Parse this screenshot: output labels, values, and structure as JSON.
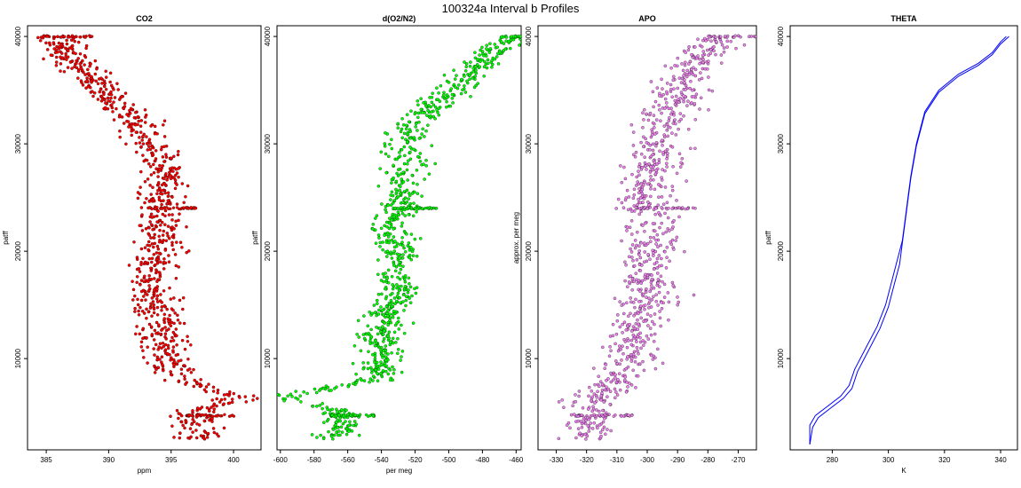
{
  "page_title": "100324a   Interval b Profiles",
  "colors": {
    "co2": "#ff0000",
    "o2n2": "#00ff00",
    "apo": "#ee82ee",
    "theta": "#0000ff",
    "outline": "#000000"
  },
  "chart_data": [
    {
      "type": "scatter",
      "title": "CO2",
      "xlabel": "ppm",
      "ylabel": "patff",
      "xlim": [
        383.5,
        402.2
      ],
      "ylim": [
        1500,
        41000
      ],
      "x_ticks": [
        385,
        390,
        395,
        400
      ],
      "y_ticks": [
        10000,
        20000,
        30000,
        40000
      ],
      "x_tick_labels": [
        "385",
        "390",
        "395",
        "400"
      ],
      "y_tick_labels": [
        "10000",
        "20000",
        "30000",
        "40000"
      ],
      "profile": [
        {
          "y": 40000,
          "x": 385.5
        },
        {
          "y": 38000,
          "x": 387.0
        },
        {
          "y": 36000,
          "x": 389.0
        },
        {
          "y": 34000,
          "x": 390.5
        },
        {
          "y": 32000,
          "x": 392.5
        },
        {
          "y": 30000,
          "x": 393.5
        },
        {
          "y": 28000,
          "x": 394.3
        },
        {
          "y": 26000,
          "x": 394.5
        },
        {
          "y": 24000,
          "x": 394.0
        },
        {
          "y": 22000,
          "x": 394.0
        },
        {
          "y": 20000,
          "x": 394.3
        },
        {
          "y": 18000,
          "x": 393.0
        },
        {
          "y": 16000,
          "x": 393.5
        },
        {
          "y": 14000,
          "x": 394.0
        },
        {
          "y": 12000,
          "x": 394.3
        },
        {
          "y": 10000,
          "x": 394.4
        },
        {
          "y": 8000,
          "x": 395.5
        },
        {
          "y": 6500,
          "x": 400.5
        },
        {
          "y": 5000,
          "x": 397.0
        },
        {
          "y": 3500,
          "x": 397.0
        },
        {
          "y": 2500,
          "x": 397.2
        }
      ],
      "spread": 1.8
    },
    {
      "type": "scatter",
      "title": "d(O2/N2)",
      "xlabel": "per meg",
      "ylabel": "patff",
      "xlim": [
        -602,
        -457
      ],
      "ylim": [
        1500,
        41000
      ],
      "x_ticks": [
        -600,
        -580,
        -560,
        -540,
        -520,
        -500,
        -480,
        -460
      ],
      "y_ticks": [
        10000,
        20000,
        30000,
        40000
      ],
      "x_tick_labels": [
        "-600",
        "-580",
        "-560",
        "-540",
        "-520",
        "-500",
        "-480",
        "-460"
      ],
      "y_tick_labels": [
        "10000",
        "20000",
        "30000",
        "40000"
      ],
      "profile": [
        {
          "y": 40000,
          "x": -462
        },
        {
          "y": 38000,
          "x": -478
        },
        {
          "y": 36000,
          "x": -490
        },
        {
          "y": 34000,
          "x": -505
        },
        {
          "y": 32000,
          "x": -520
        },
        {
          "y": 30000,
          "x": -527
        },
        {
          "y": 28000,
          "x": -525
        },
        {
          "y": 26000,
          "x": -528
        },
        {
          "y": 24000,
          "x": -528
        },
        {
          "y": 22000,
          "x": -535
        },
        {
          "y": 20000,
          "x": -532
        },
        {
          "y": 18000,
          "x": -530
        },
        {
          "y": 16000,
          "x": -528
        },
        {
          "y": 14000,
          "x": -538
        },
        {
          "y": 12000,
          "x": -540
        },
        {
          "y": 10000,
          "x": -540
        },
        {
          "y": 8000,
          "x": -545
        },
        {
          "y": 6500,
          "x": -595
        },
        {
          "y": 5000,
          "x": -565
        },
        {
          "y": 3500,
          "x": -565
        },
        {
          "y": 2500,
          "x": -568
        }
      ],
      "spread": 12
    },
    {
      "type": "scatter",
      "title": "APO",
      "xlabel": "",
      "ylabel": "approx. per meg",
      "xlim": [
        -336,
        -264
      ],
      "ylim": [
        1500,
        41000
      ],
      "x_ticks": [
        -330,
        -320,
        -310,
        -300,
        -290,
        -280,
        -270
      ],
      "y_ticks": [
        10000,
        20000,
        30000,
        40000
      ],
      "x_tick_labels": [
        "-330",
        "-320",
        "-310",
        "-300",
        "-290",
        "-280",
        "-270"
      ],
      "y_tick_labels": [
        "10000",
        "20000",
        "30000",
        "40000"
      ],
      "profile": [
        {
          "y": 40000,
          "x": -276
        },
        {
          "y": 38000,
          "x": -282
        },
        {
          "y": 36000,
          "x": -288
        },
        {
          "y": 34000,
          "x": -290
        },
        {
          "y": 32000,
          "x": -295
        },
        {
          "y": 30000,
          "x": -297
        },
        {
          "y": 28000,
          "x": -298
        },
        {
          "y": 26000,
          "x": -300
        },
        {
          "y": 24000,
          "x": -300
        },
        {
          "y": 22000,
          "x": -298
        },
        {
          "y": 20000,
          "x": -299
        },
        {
          "y": 18000,
          "x": -300
        },
        {
          "y": 16000,
          "x": -298
        },
        {
          "y": 14000,
          "x": -302
        },
        {
          "y": 12000,
          "x": -305
        },
        {
          "y": 10000,
          "x": -305
        },
        {
          "y": 8000,
          "x": -310
        },
        {
          "y": 6500,
          "x": -318
        },
        {
          "y": 5000,
          "x": -320
        },
        {
          "y": 3500,
          "x": -318
        },
        {
          "y": 2500,
          "x": -320
        }
      ],
      "spread": 9
    },
    {
      "type": "line",
      "title": "THETA",
      "xlabel": "K",
      "ylabel": "patff",
      "xlim": [
        265,
        346
      ],
      "ylim": [
        1500,
        41000
      ],
      "x_ticks": [
        280,
        300,
        320,
        340
      ],
      "y_ticks": [
        10000,
        20000,
        30000,
        40000
      ],
      "x_tick_labels": [
        "280",
        "300",
        "320",
        "340"
      ],
      "y_tick_labels": [
        "10000",
        "20000",
        "30000",
        "40000"
      ],
      "series": [
        {
          "x": [
            272,
            272,
            274,
            278,
            283,
            286,
            288,
            292,
            296,
            299,
            301,
            303,
            305,
            306,
            307,
            308,
            310,
            313,
            318,
            325,
            332,
            337,
            340,
            342
          ],
          "y": [
            2000,
            3800,
            4700,
            5500,
            6500,
            7500,
            9000,
            11000,
            13000,
            15000,
            17000,
            19000,
            21000,
            23000,
            25000,
            27000,
            30000,
            33000,
            35000,
            36500,
            37500,
            38500,
            39500,
            40000
          ]
        },
        {
          "x": [
            272,
            273,
            275,
            279,
            284,
            287,
            289,
            293,
            297,
            300,
            302,
            304,
            305,
            306,
            307,
            308,
            310,
            313,
            318,
            325,
            332,
            337,
            340,
            343
          ],
          "y": [
            2000,
            3600,
            4500,
            5300,
            6300,
            7200,
            8800,
            10800,
            12800,
            14800,
            16800,
            18800,
            20800,
            22800,
            24800,
            26800,
            29800,
            32800,
            34800,
            36300,
            37300,
            38300,
            39300,
            40000
          ]
        }
      ]
    }
  ]
}
